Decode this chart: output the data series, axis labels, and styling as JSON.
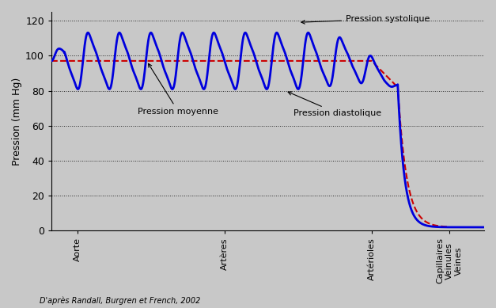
{
  "ylabel": "Pression (mm Hg)",
  "ylim": [
    0,
    125
  ],
  "yticks": [
    0,
    20,
    40,
    60,
    80,
    100,
    120
  ],
  "background_color": "#c8c8c8",
  "plot_bg_color": "#c8c8c8",
  "blue_color": "#0000dd",
  "red_color": "#cc0000",
  "annotation_systolique": "Pression systolique",
  "annotation_moyenne": "Pression moyenne",
  "annotation_diastolique": "Pression diastolique",
  "source_text": "D'après Randall, Burgren et French, 2002",
  "xtick_labels": [
    "Aorte",
    "Artères",
    "Artérioles",
    "Capillaires\nVeinules\nVeines"
  ],
  "xtick_positions": [
    0.06,
    0.4,
    0.74,
    0.92
  ]
}
